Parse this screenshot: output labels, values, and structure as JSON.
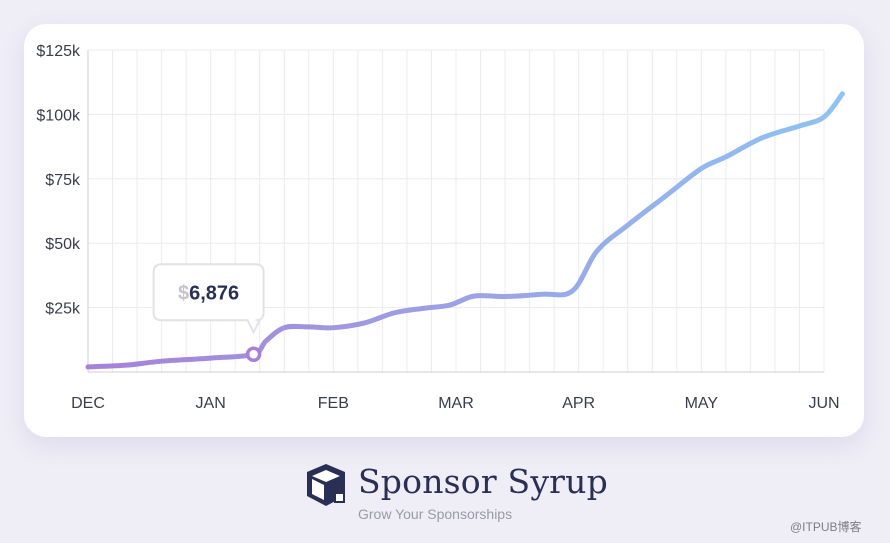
{
  "chart_data": {
    "type": "line",
    "x_labels": [
      "DEC",
      "JAN",
      "FEB",
      "MAR",
      "APR",
      "MAY",
      "JUN"
    ],
    "y_ticks": [
      "$25k",
      "$50k",
      "$75k",
      "$100k",
      "$125k"
    ],
    "ylim": [
      0,
      125000
    ],
    "grid": true,
    "series": [
      {
        "values": [
          {
            "t": 0.0,
            "v": 2000
          },
          {
            "t": 0.3,
            "v": 2600
          },
          {
            "t": 0.6,
            "v": 4200
          },
          {
            "t": 1.0,
            "v": 5400
          },
          {
            "t": 1.35,
            "v": 6876
          },
          {
            "t": 1.45,
            "v": 12000
          },
          {
            "t": 1.6,
            "v": 17200
          },
          {
            "t": 1.8,
            "v": 17500
          },
          {
            "t": 2.0,
            "v": 17200
          },
          {
            "t": 2.25,
            "v": 19000
          },
          {
            "t": 2.5,
            "v": 23000
          },
          {
            "t": 2.75,
            "v": 24800
          },
          {
            "t": 2.95,
            "v": 26000
          },
          {
            "t": 3.15,
            "v": 29500
          },
          {
            "t": 3.4,
            "v": 29300
          },
          {
            "t": 3.7,
            "v": 30200
          },
          {
            "t": 3.95,
            "v": 31500
          },
          {
            "t": 4.15,
            "v": 47000
          },
          {
            "t": 4.4,
            "v": 57000
          },
          {
            "t": 4.7,
            "v": 68000
          },
          {
            "t": 5.0,
            "v": 79000
          },
          {
            "t": 5.2,
            "v": 83500
          },
          {
            "t": 5.5,
            "v": 91000
          },
          {
            "t": 5.8,
            "v": 95500
          },
          {
            "t": 6.0,
            "v": 99000
          },
          {
            "t": 6.15,
            "v": 108000
          }
        ]
      }
    ],
    "highlight": {
      "t": 1.35,
      "v": 6876,
      "label_currency": "$",
      "label_value": "6,876"
    },
    "colors": {
      "line_start": "#a781d9",
      "line_end": "#8fc3f3",
      "grid": "#ececf0",
      "axis": "#cfcfd6"
    }
  },
  "brand": {
    "name": "Sponsor Syrup",
    "tagline": "Grow Your Sponsorships",
    "color": "#2a2f55"
  },
  "watermark": "@ITPUB博客"
}
